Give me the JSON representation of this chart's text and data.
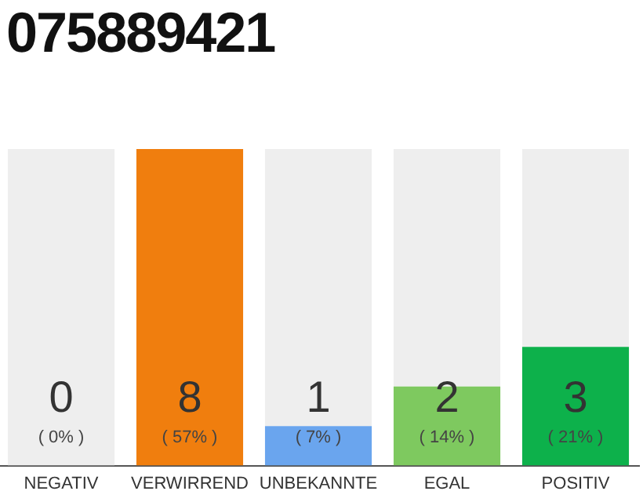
{
  "chart_data": {
    "type": "bar",
    "title": "075889421",
    "categories": [
      "NEGATIV",
      "VERWIRREND",
      "UNBEKANNTE",
      "EGAL",
      "POSITIV"
    ],
    "stacked": true,
    "series": [
      {
        "colors": [
          "#9a9a9a",
          "#f07e0e",
          "#6aa5ee",
          "#7ec95f",
          "#0db14b"
        ],
        "values": [
          0,
          8,
          1,
          2,
          3
        ],
        "value_labels": [
          null,
          "8",
          "1",
          "2",
          "3"
        ]
      },
      {
        "color": "#eeeeee",
        "values": [
          8,
          0,
          7,
          6,
          5
        ]
      }
    ],
    "ylim": [
      0,
      8
    ],
    "grid": false,
    "legend": false,
    "tick_labels": "x",
    "annotations": [
      "( 0% )",
      "( 57% )",
      "( 7% )",
      "( 14% )",
      "( 21% )",
      "0"
    ]
  }
}
